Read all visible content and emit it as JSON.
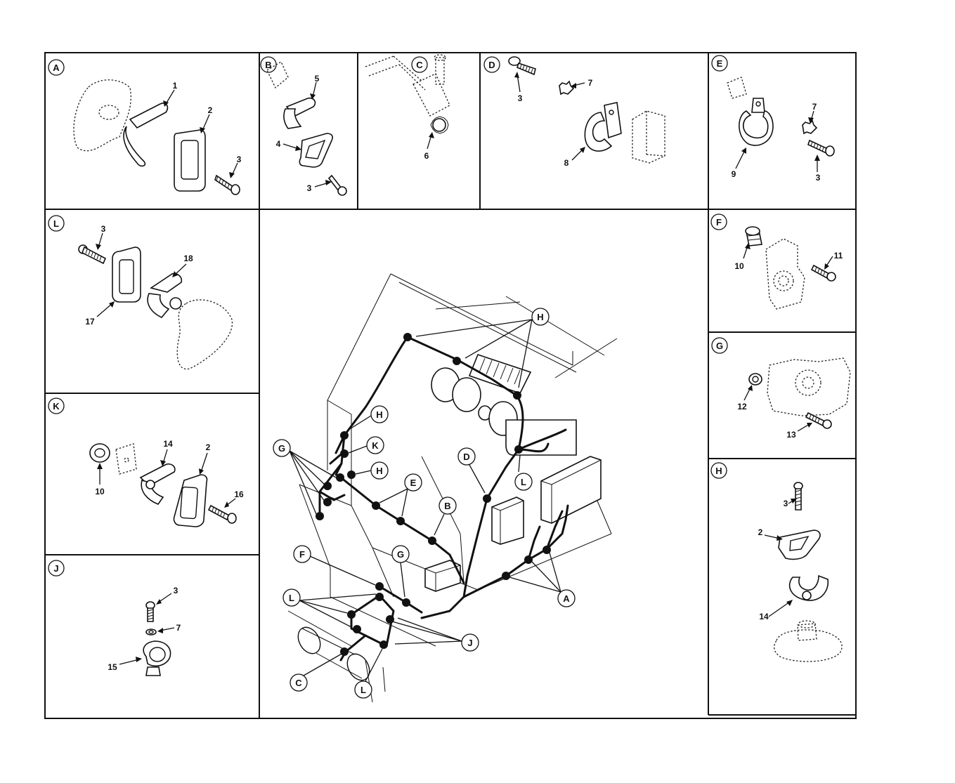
{
  "panels": [
    {
      "id": "A",
      "label": "A"
    },
    {
      "id": "B",
      "label": "B"
    },
    {
      "id": "C",
      "label": "C"
    },
    {
      "id": "D",
      "label": "D"
    },
    {
      "id": "E",
      "label": "E"
    },
    {
      "id": "F",
      "label": "F"
    },
    {
      "id": "G",
      "label": "G"
    },
    {
      "id": "H",
      "label": "H"
    },
    {
      "id": "J",
      "label": "J"
    },
    {
      "id": "K",
      "label": "K"
    },
    {
      "id": "L",
      "label": "L"
    }
  ],
  "callouts": {
    "A": [
      "1",
      "2",
      "3"
    ],
    "B": [
      "5",
      "4",
      "3"
    ],
    "C": [
      "6"
    ],
    "D": [
      "3",
      "7",
      "8"
    ],
    "E": [
      "7",
      "9",
      "3"
    ],
    "F": [
      "10",
      "11"
    ],
    "G": [
      "12",
      "13"
    ],
    "H": [
      "3",
      "2",
      "14"
    ],
    "J": [
      "3",
      "7",
      "15"
    ],
    "K": [
      "14",
      "2",
      "10",
      "16"
    ],
    "L": [
      "3",
      "18",
      "17"
    ]
  },
  "main_labels": {
    "H_top": "H",
    "H_left1": "H",
    "H_left2": "H",
    "K": "K",
    "G_left": "G",
    "D": "D",
    "E": "E",
    "B": "B",
    "L_right": "L",
    "F": "F",
    "G_low": "G",
    "A": "A",
    "L_left": "L",
    "J": "J",
    "C": "C",
    "L_bottom": "L"
  }
}
